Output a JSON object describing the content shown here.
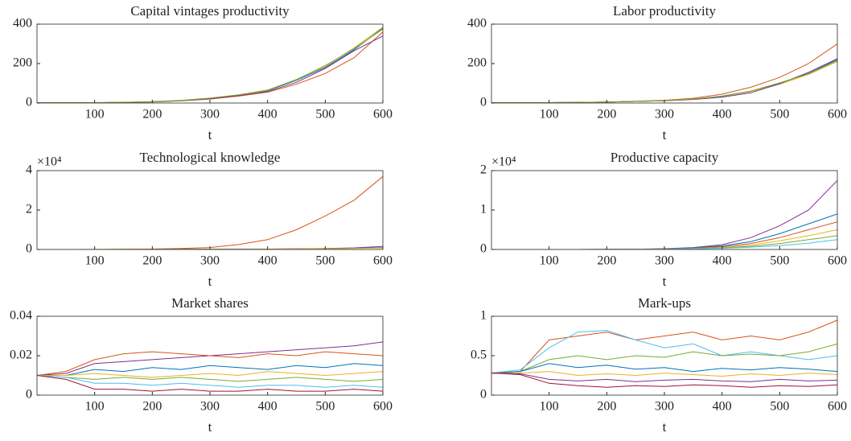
{
  "chart_data": [
    {
      "type": "line",
      "title": "Capital vintages productivity",
      "xlabel": "t",
      "x": [
        0,
        50,
        100,
        150,
        200,
        250,
        300,
        350,
        400,
        450,
        500,
        550,
        600
      ],
      "xlim": [
        0,
        600
      ],
      "xticks": [
        100,
        200,
        300,
        400,
        500,
        600
      ],
      "ylim": [
        0,
        400
      ],
      "yticks": [
        0,
        200,
        400
      ],
      "series": [
        {
          "color": "#0072BD",
          "values": [
            1,
            1,
            2,
            3,
            6,
            12,
            23,
            40,
            62,
            115,
            180,
            270,
            380
          ]
        },
        {
          "color": "#D95319",
          "values": [
            1,
            1,
            2,
            3,
            5,
            11,
            20,
            35,
            55,
            95,
            150,
            230,
            360
          ]
        },
        {
          "color": "#EDB120",
          "values": [
            1,
            1,
            2,
            3,
            6,
            13,
            24,
            38,
            65,
            120,
            185,
            280,
            385
          ]
        },
        {
          "color": "#7E2F8E",
          "values": [
            1,
            1,
            2,
            3,
            6,
            12,
            22,
            37,
            58,
            105,
            175,
            265,
            340
          ]
        },
        {
          "color": "#77AC30",
          "values": [
            1,
            1,
            2,
            4,
            7,
            13,
            25,
            42,
            66,
            118,
            190,
            275,
            375
          ]
        }
      ]
    },
    {
      "type": "line",
      "title": "Labor productivity",
      "xlabel": "t",
      "x": [
        0,
        50,
        100,
        150,
        200,
        250,
        300,
        350,
        400,
        450,
        500,
        550,
        600
      ],
      "xlim": [
        0,
        600
      ],
      "xticks": [
        100,
        200,
        300,
        400,
        500,
        600
      ],
      "ylim": [
        0,
        400
      ],
      "yticks": [
        0,
        200,
        400
      ],
      "series": [
        {
          "color": "#0072BD",
          "values": [
            1,
            1,
            2,
            3,
            5,
            8,
            12,
            20,
            35,
            60,
            100,
            150,
            220
          ]
        },
        {
          "color": "#D95319",
          "values": [
            1,
            1,
            2,
            3,
            5,
            9,
            14,
            24,
            45,
            80,
            130,
            200,
            300
          ]
        },
        {
          "color": "#EDB120",
          "values": [
            1,
            1,
            2,
            3,
            5,
            8,
            12,
            19,
            33,
            58,
            95,
            145,
            210
          ]
        },
        {
          "color": "#7E2F8E",
          "values": [
            1,
            1,
            2,
            3,
            5,
            8,
            11,
            18,
            30,
            52,
            98,
            155,
            225
          ]
        },
        {
          "color": "#77AC30",
          "values": [
            1,
            1,
            2,
            3,
            5,
            8,
            12,
            20,
            34,
            61,
            102,
            148,
            215
          ]
        }
      ]
    },
    {
      "type": "line",
      "title": "Technological knowledge",
      "xlabel": "t",
      "y_exponent": "×10⁴",
      "x": [
        0,
        50,
        100,
        150,
        200,
        250,
        300,
        350,
        400,
        450,
        500,
        550,
        600
      ],
      "xlim": [
        0,
        600
      ],
      "xticks": [
        100,
        200,
        300,
        400,
        500,
        600
      ],
      "ylim": [
        0,
        40000
      ],
      "yticks": [
        0,
        {
          "value": 20000,
          "label": "2"
        },
        {
          "value": 40000,
          "label": "4"
        }
      ],
      "series": [
        {
          "color": "#D95319",
          "values": [
            10,
            20,
            50,
            100,
            200,
            500,
            1000,
            2500,
            5000,
            10000,
            17000,
            25000,
            37000
          ]
        },
        {
          "color": "#7E2F8E",
          "values": [
            5,
            10,
            20,
            40,
            60,
            80,
            100,
            150,
            200,
            300,
            500,
            800,
            1500
          ]
        },
        {
          "color": "#0072BD",
          "values": [
            5,
            10,
            20,
            40,
            60,
            80,
            100,
            150,
            200,
            300,
            400,
            600,
            900
          ]
        },
        {
          "color": "#EDB120",
          "values": [
            5,
            10,
            15,
            30,
            45,
            60,
            80,
            120,
            160,
            240,
            350,
            500,
            700
          ]
        }
      ]
    },
    {
      "type": "line",
      "title": "Productive capacity",
      "xlabel": "t",
      "y_exponent": "×10⁴",
      "x": [
        0,
        50,
        100,
        150,
        200,
        250,
        300,
        350,
        400,
        450,
        500,
        550,
        600
      ],
      "xlim": [
        0,
        600
      ],
      "xticks": [
        100,
        200,
        300,
        400,
        500,
        600
      ],
      "ylim": [
        0,
        20000
      ],
      "yticks": [
        0,
        {
          "value": 10000,
          "label": "1"
        },
        {
          "value": 20000,
          "label": "2"
        }
      ],
      "series": [
        {
          "color": "#7E2F8E",
          "values": [
            0,
            0,
            0,
            10,
            30,
            80,
            200,
            500,
            1200,
            3000,
            6000,
            10000,
            17500
          ]
        },
        {
          "color": "#0072BD",
          "values": [
            0,
            0,
            0,
            10,
            30,
            70,
            150,
            400,
            900,
            2000,
            4000,
            6500,
            9000
          ]
        },
        {
          "color": "#D95319",
          "values": [
            0,
            0,
            0,
            10,
            25,
            60,
            130,
            300,
            700,
            1500,
            3000,
            5000,
            7000
          ]
        },
        {
          "color": "#EDB120",
          "values": [
            0,
            0,
            0,
            8,
            20,
            50,
            100,
            250,
            500,
            1100,
            2200,
            3500,
            5000
          ]
        },
        {
          "color": "#77AC30",
          "values": [
            0,
            0,
            0,
            8,
            20,
            40,
            80,
            200,
            400,
            800,
            1500,
            2500,
            3500
          ]
        },
        {
          "color": "#4DBEEE",
          "values": [
            0,
            0,
            0,
            5,
            15,
            30,
            60,
            150,
            300,
            600,
            1000,
            1600,
            2500
          ]
        }
      ]
    },
    {
      "type": "line",
      "title": "Market shares",
      "xlabel": "t",
      "x": [
        0,
        50,
        100,
        150,
        200,
        250,
        300,
        350,
        400,
        450,
        500,
        550,
        600
      ],
      "xlim": [
        0,
        600
      ],
      "xticks": [
        100,
        200,
        300,
        400,
        500,
        600
      ],
      "ylim": [
        0,
        0.04
      ],
      "yticks": [
        0,
        0.02,
        0.04
      ],
      "series": [
        {
          "color": "#7E2F8E",
          "values": [
            0.01,
            0.011,
            0.016,
            0.017,
            0.018,
            0.019,
            0.02,
            0.021,
            0.022,
            0.023,
            0.024,
            0.025,
            0.027
          ]
        },
        {
          "color": "#D95319",
          "values": [
            0.01,
            0.012,
            0.018,
            0.021,
            0.022,
            0.021,
            0.02,
            0.019,
            0.021,
            0.02,
            0.022,
            0.021,
            0.02
          ]
        },
        {
          "color": "#0072BD",
          "values": [
            0.01,
            0.01,
            0.013,
            0.012,
            0.014,
            0.013,
            0.015,
            0.014,
            0.013,
            0.015,
            0.014,
            0.016,
            0.015
          ]
        },
        {
          "color": "#EDB120",
          "values": [
            0.01,
            0.01,
            0.011,
            0.01,
            0.009,
            0.01,
            0.011,
            0.01,
            0.012,
            0.011,
            0.01,
            0.011,
            0.012
          ]
        },
        {
          "color": "#77AC30",
          "values": [
            0.01,
            0.009,
            0.008,
            0.009,
            0.008,
            0.009,
            0.008,
            0.007,
            0.008,
            0.009,
            0.008,
            0.007,
            0.008
          ]
        },
        {
          "color": "#4DBEEE",
          "values": [
            0.01,
            0.009,
            0.006,
            0.006,
            0.005,
            0.006,
            0.005,
            0.004,
            0.005,
            0.005,
            0.004,
            0.005,
            0.004
          ]
        },
        {
          "color": "#A2142F",
          "values": [
            0.01,
            0.008,
            0.003,
            0.003,
            0.002,
            0.003,
            0.002,
            0.002,
            0.003,
            0.002,
            0.002,
            0.003,
            0.002
          ]
        }
      ]
    },
    {
      "type": "line",
      "title": "Mark-ups",
      "xlabel": "t",
      "x": [
        0,
        50,
        100,
        150,
        200,
        250,
        300,
        350,
        400,
        450,
        500,
        550,
        600
      ],
      "xlim": [
        0,
        600
      ],
      "xticks": [
        100,
        200,
        300,
        400,
        500,
        600
      ],
      "ylim": [
        0,
        1
      ],
      "yticks": [
        0,
        0.5,
        1
      ],
      "series": [
        {
          "color": "#D95319",
          "values": [
            0.28,
            0.3,
            0.7,
            0.75,
            0.8,
            0.7,
            0.75,
            0.8,
            0.7,
            0.75,
            0.7,
            0.8,
            0.95
          ]
        },
        {
          "color": "#4DBEEE",
          "values": [
            0.28,
            0.32,
            0.6,
            0.8,
            0.82,
            0.7,
            0.6,
            0.65,
            0.5,
            0.55,
            0.5,
            0.45,
            0.5
          ]
        },
        {
          "color": "#77AC30",
          "values": [
            0.28,
            0.3,
            0.45,
            0.5,
            0.45,
            0.5,
            0.48,
            0.55,
            0.5,
            0.52,
            0.5,
            0.55,
            0.65
          ]
        },
        {
          "color": "#0072BD",
          "values": [
            0.28,
            0.3,
            0.4,
            0.35,
            0.38,
            0.33,
            0.35,
            0.3,
            0.34,
            0.32,
            0.35,
            0.33,
            0.3
          ]
        },
        {
          "color": "#EDB120",
          "values": [
            0.28,
            0.28,
            0.3,
            0.25,
            0.27,
            0.25,
            0.28,
            0.26,
            0.24,
            0.27,
            0.25,
            0.28,
            0.26
          ]
        },
        {
          "color": "#7E2F8E",
          "values": [
            0.28,
            0.27,
            0.2,
            0.18,
            0.2,
            0.17,
            0.19,
            0.2,
            0.18,
            0.17,
            0.2,
            0.18,
            0.19
          ]
        },
        {
          "color": "#A2142F",
          "values": [
            0.28,
            0.26,
            0.15,
            0.12,
            0.1,
            0.12,
            0.11,
            0.13,
            0.12,
            0.1,
            0.12,
            0.11,
            0.13
          ]
        }
      ]
    }
  ]
}
